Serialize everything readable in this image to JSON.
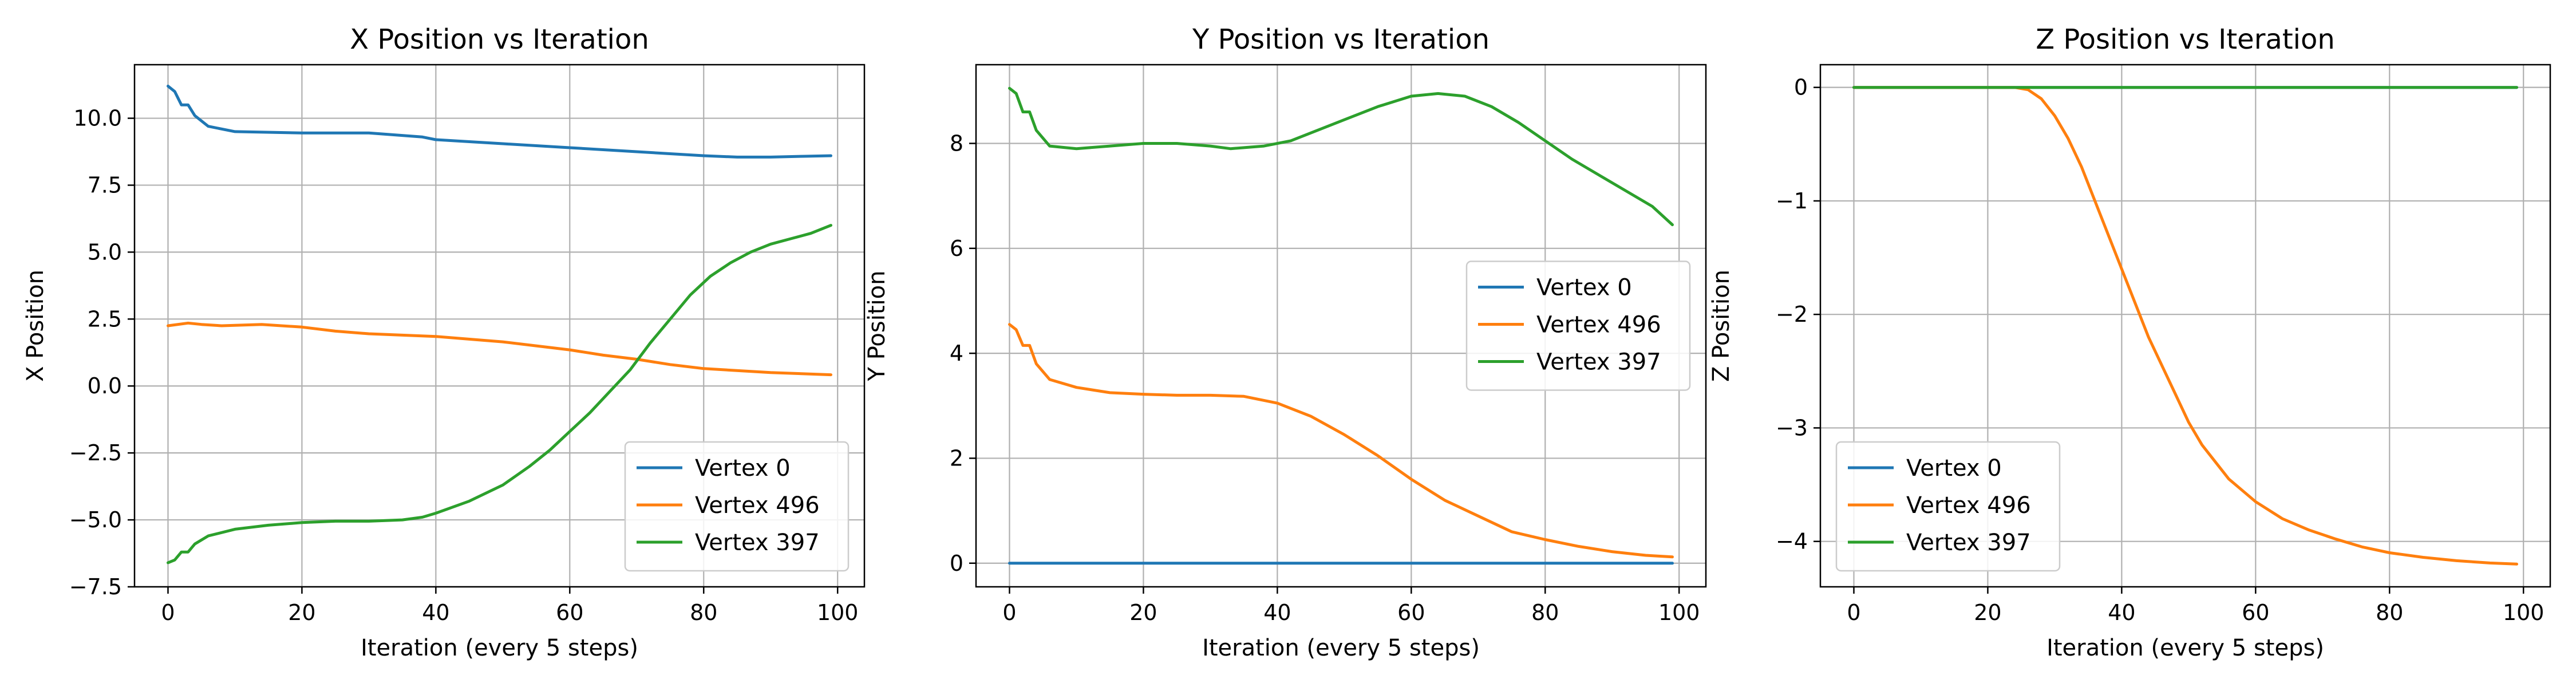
{
  "chart_data": [
    {
      "type": "line",
      "title": "X Position vs Iteration",
      "xlabel": "Iteration (every 5 steps)",
      "ylabel": "X Position",
      "xlim": [
        -5,
        104
      ],
      "ylim": [
        -7.5,
        12.0
      ],
      "xticks": [
        0,
        20,
        40,
        60,
        80,
        100
      ],
      "xtick_labels": [
        "0",
        "20",
        "40",
        "60",
        "80",
        "100"
      ],
      "yticks": [
        -7.5,
        -5.0,
        -2.5,
        0.0,
        2.5,
        5.0,
        7.5,
        10.0
      ],
      "ytick_labels": [
        "−7.5",
        "−5.0",
        "−2.5",
        "0.0",
        "2.5",
        "5.0",
        "7.5",
        "10.0"
      ],
      "grid": true,
      "legend_position": "lower-right",
      "series": [
        {
          "name": "Vertex 0",
          "color": "#1f77b4",
          "points": [
            [
              0,
              11.2
            ],
            [
              1,
              11.0
            ],
            [
              2,
              10.5
            ],
            [
              3,
              10.5
            ],
            [
              4,
              10.1
            ],
            [
              6,
              9.7
            ],
            [
              10,
              9.5
            ],
            [
              20,
              9.45
            ],
            [
              30,
              9.45
            ],
            [
              38,
              9.3
            ],
            [
              40,
              9.2
            ],
            [
              50,
              9.05
            ],
            [
              60,
              8.9
            ],
            [
              70,
              8.75
            ],
            [
              80,
              8.6
            ],
            [
              85,
              8.55
            ],
            [
              90,
              8.55
            ],
            [
              95,
              8.58
            ],
            [
              99,
              8.6
            ]
          ]
        },
        {
          "name": "Vertex 496",
          "color": "#ff7f0e",
          "points": [
            [
              0,
              2.25
            ],
            [
              3,
              2.35
            ],
            [
              5,
              2.3
            ],
            [
              8,
              2.25
            ],
            [
              14,
              2.3
            ],
            [
              20,
              2.2
            ],
            [
              25,
              2.05
            ],
            [
              30,
              1.95
            ],
            [
              40,
              1.85
            ],
            [
              50,
              1.65
            ],
            [
              55,
              1.5
            ],
            [
              60,
              1.35
            ],
            [
              65,
              1.15
            ],
            [
              70,
              1.0
            ],
            [
              75,
              0.8
            ],
            [
              80,
              0.65
            ],
            [
              90,
              0.5
            ],
            [
              99,
              0.42
            ]
          ]
        },
        {
          "name": "Vertex 397",
          "color": "#2ca02c",
          "points": [
            [
              0,
              -6.6
            ],
            [
              1,
              -6.5
            ],
            [
              2,
              -6.2
            ],
            [
              3,
              -6.2
            ],
            [
              4,
              -5.9
            ],
            [
              6,
              -5.6
            ],
            [
              10,
              -5.35
            ],
            [
              15,
              -5.2
            ],
            [
              20,
              -5.1
            ],
            [
              25,
              -5.05
            ],
            [
              30,
              -5.05
            ],
            [
              35,
              -5.0
            ],
            [
              38,
              -4.9
            ],
            [
              40,
              -4.75
            ],
            [
              45,
              -4.3
            ],
            [
              50,
              -3.7
            ],
            [
              54,
              -3.0
            ],
            [
              57,
              -2.4
            ],
            [
              60,
              -1.7
            ],
            [
              63,
              -1.0
            ],
            [
              66,
              -0.2
            ],
            [
              69,
              0.6
            ],
            [
              72,
              1.6
            ],
            [
              75,
              2.5
            ],
            [
              78,
              3.4
            ],
            [
              81,
              4.1
            ],
            [
              84,
              4.6
            ],
            [
              87,
              5.0
            ],
            [
              90,
              5.3
            ],
            [
              93,
              5.5
            ],
            [
              96,
              5.7
            ],
            [
              99,
              6.0
            ]
          ]
        }
      ]
    },
    {
      "type": "line",
      "title": "Y Position vs Iteration",
      "xlabel": "Iteration (every 5 steps)",
      "ylabel": "Y Position",
      "xlim": [
        -5,
        104
      ],
      "ylim": [
        -0.45,
        9.5
      ],
      "xticks": [
        0,
        20,
        40,
        60,
        80,
        100
      ],
      "xtick_labels": [
        "0",
        "20",
        "40",
        "60",
        "80",
        "100"
      ],
      "yticks": [
        0,
        2,
        4,
        6,
        8
      ],
      "ytick_labels": [
        "0",
        "2",
        "4",
        "6",
        "8"
      ],
      "grid": true,
      "legend_position": "center-right",
      "series": [
        {
          "name": "Vertex 0",
          "color": "#1f77b4",
          "points": [
            [
              0,
              0.0
            ],
            [
              99,
              0.0
            ]
          ]
        },
        {
          "name": "Vertex 496",
          "color": "#ff7f0e",
          "points": [
            [
              0,
              4.55
            ],
            [
              1,
              4.45
            ],
            [
              2,
              4.15
            ],
            [
              3,
              4.15
            ],
            [
              4,
              3.8
            ],
            [
              6,
              3.5
            ],
            [
              10,
              3.35
            ],
            [
              15,
              3.25
            ],
            [
              20,
              3.22
            ],
            [
              25,
              3.2
            ],
            [
              30,
              3.2
            ],
            [
              35,
              3.18
            ],
            [
              40,
              3.05
            ],
            [
              45,
              2.8
            ],
            [
              50,
              2.45
            ],
            [
              55,
              2.05
            ],
            [
              60,
              1.6
            ],
            [
              65,
              1.2
            ],
            [
              70,
              0.9
            ],
            [
              75,
              0.6
            ],
            [
              80,
              0.45
            ],
            [
              85,
              0.32
            ],
            [
              90,
              0.22
            ],
            [
              95,
              0.15
            ],
            [
              99,
              0.12
            ]
          ]
        },
        {
          "name": "Vertex 397",
          "color": "#2ca02c",
          "points": [
            [
              0,
              9.05
            ],
            [
              1,
              8.95
            ],
            [
              2,
              8.6
            ],
            [
              3,
              8.6
            ],
            [
              4,
              8.25
            ],
            [
              6,
              7.95
            ],
            [
              10,
              7.9
            ],
            [
              15,
              7.95
            ],
            [
              20,
              8.0
            ],
            [
              25,
              8.0
            ],
            [
              30,
              7.95
            ],
            [
              33,
              7.9
            ],
            [
              38,
              7.95
            ],
            [
              42,
              8.05
            ],
            [
              46,
              8.25
            ],
            [
              50,
              8.45
            ],
            [
              55,
              8.7
            ],
            [
              60,
              8.9
            ],
            [
              64,
              8.95
            ],
            [
              68,
              8.9
            ],
            [
              72,
              8.7
            ],
            [
              76,
              8.4
            ],
            [
              80,
              8.05
            ],
            [
              84,
              7.7
            ],
            [
              88,
              7.4
            ],
            [
              92,
              7.1
            ],
            [
              96,
              6.8
            ],
            [
              99,
              6.45
            ]
          ]
        }
      ]
    },
    {
      "type": "line",
      "title": "Z Position vs Iteration",
      "xlabel": "Iteration (every 5 steps)",
      "ylabel": "Z Position",
      "xlim": [
        -5,
        104
      ],
      "ylim": [
        -4.4,
        0.2
      ],
      "xticks": [
        0,
        20,
        40,
        60,
        80,
        100
      ],
      "xtick_labels": [
        "0",
        "20",
        "40",
        "60",
        "80",
        "100"
      ],
      "yticks": [
        -4,
        -3,
        -2,
        -1,
        0
      ],
      "ytick_labels": [
        "−4",
        "−3",
        "−2",
        "−1",
        "0"
      ],
      "grid": true,
      "legend_position": "lower-left",
      "series": [
        {
          "name": "Vertex 0",
          "color": "#1f77b4",
          "points": [
            [
              0,
              0.0
            ],
            [
              99,
              0.0
            ]
          ]
        },
        {
          "name": "Vertex 496",
          "color": "#ff7f0e",
          "points": [
            [
              0,
              0.0
            ],
            [
              24,
              0.0
            ],
            [
              26,
              -0.02
            ],
            [
              28,
              -0.1
            ],
            [
              30,
              -0.25
            ],
            [
              32,
              -0.45
            ],
            [
              34,
              -0.7
            ],
            [
              36,
              -1.0
            ],
            [
              38,
              -1.3
            ],
            [
              40,
              -1.6
            ],
            [
              42,
              -1.9
            ],
            [
              44,
              -2.2
            ],
            [
              46,
              -2.45
            ],
            [
              48,
              -2.7
            ],
            [
              50,
              -2.95
            ],
            [
              52,
              -3.15
            ],
            [
              54,
              -3.3
            ],
            [
              56,
              -3.45
            ],
            [
              58,
              -3.55
            ],
            [
              60,
              -3.65
            ],
            [
              64,
              -3.8
            ],
            [
              68,
              -3.9
            ],
            [
              72,
              -3.98
            ],
            [
              76,
              -4.05
            ],
            [
              80,
              -4.1
            ],
            [
              85,
              -4.14
            ],
            [
              90,
              -4.17
            ],
            [
              95,
              -4.19
            ],
            [
              99,
              -4.2
            ]
          ]
        },
        {
          "name": "Vertex 397",
          "color": "#2ca02c",
          "points": [
            [
              0,
              0.0
            ],
            [
              99,
              0.0
            ]
          ]
        }
      ]
    }
  ]
}
